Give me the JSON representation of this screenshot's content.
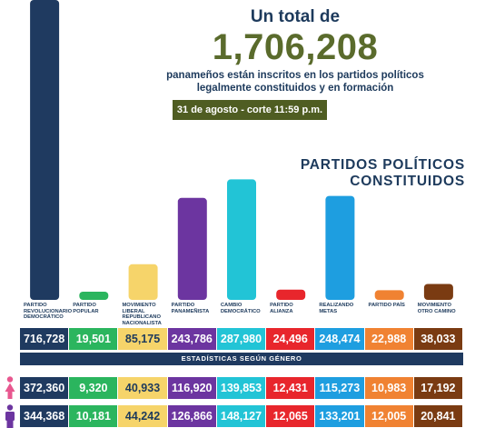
{
  "header": {
    "line1": "Un total de",
    "total": "1,706,208",
    "line2": "panameños están inscritos en los partidos políticos",
    "line3": "legalmente constituidos y en formación",
    "date": "31 de agosto - corte 11:59 p.m."
  },
  "section": {
    "line1": "PARTIDOS POLÍTICOS",
    "line2": "CONSTITUIDOS"
  },
  "stats_title": "ESTADÍSTICAS SEGÚN GÉNERO",
  "gender_icons": [
    "female-icon",
    "male-icon"
  ],
  "parties": [
    {
      "name": "PARTIDO REVOLUCIONARIO DEMOCRÁTICO",
      "total_label": "716,728",
      "women": "372,360",
      "men": "344,368",
      "color": "#1f3a60",
      "text_color": "#ffffff"
    },
    {
      "name": "PARTIDO POPULAR",
      "total_label": "19,501",
      "women": "9,320",
      "men": "10,181",
      "color": "#2bb55e",
      "text_color": "#ffffff"
    },
    {
      "name": "MOVIMIENTO LIBERAL REPUBLICANO NACIONALISTA",
      "total_label": "85,175",
      "women": "40,933",
      "men": "44,242",
      "color": "#f6d46a",
      "text_color": "#1d3a5c"
    },
    {
      "name": "PARTIDO PANAMEÑISTA",
      "total_label": "243,786",
      "women": "116,920",
      "men": "126,866",
      "color": "#6c35a0",
      "text_color": "#ffffff"
    },
    {
      "name": "CAMBIO DEMOCRÁTICO",
      "total_label": "287,980",
      "women": "139,853",
      "men": "148,127",
      "color": "#22c4d6",
      "text_color": "#ffffff"
    },
    {
      "name": "PARTIDO ALIANZA",
      "total_label": "24,496",
      "women": "12,431",
      "men": "12,065",
      "color": "#e8262c",
      "text_color": "#ffffff"
    },
    {
      "name": "REALIZANDO METAS",
      "total_label": "248,474",
      "women": "115,273",
      "men": "133,201",
      "color": "#1e9ee0",
      "text_color": "#ffffff"
    },
    {
      "name": "PARTIDO PAÍS",
      "total_label": "22,988",
      "women": "10,983",
      "men": "12,005",
      "color": "#f08232",
      "text_color": "#ffffff"
    },
    {
      "name": "MOVIMIENTO OTRO CAMINO",
      "total_label": "38,033",
      "women": "17,192",
      "men": "20,841",
      "color": "#7a3b12",
      "text_color": "#ffffff"
    }
  ],
  "chart_data": {
    "type": "bar",
    "title": "",
    "categories": [
      "PARTIDO REVOLUCIONARIO DEMOCRÁTICO",
      "PARTIDO POPULAR",
      "MOVIMIENTO LIBERAL REPUBLICANO NACIONALISTA",
      "PARTIDO PANAMEÑISTA",
      "CAMBIO DEMOCRÁTICO",
      "PARTIDO ALIANZA",
      "REALIZANDO METAS",
      "PARTIDO PAÍS",
      "MOVIMIENTO OTRO CAMINO"
    ],
    "values": [
      716728,
      19501,
      85175,
      243786,
      287980,
      24496,
      248474,
      22988,
      38033
    ],
    "xlabel": "",
    "ylabel": "",
    "grid": false,
    "legend": "none"
  }
}
